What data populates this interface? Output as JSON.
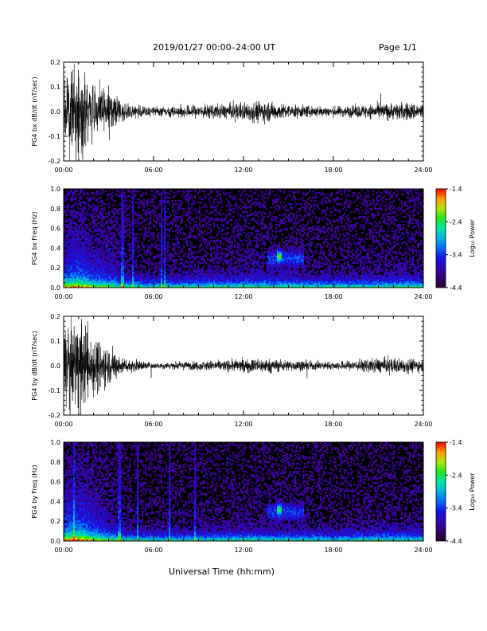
{
  "header": {
    "title": "2019/01/27  00:00–24:00 UT",
    "page": "Page 1/1",
    "xlabel": "Universal Time (hh:mm)"
  },
  "colorbar": {
    "label": "Log₁₀ Power",
    "ticks": [
      "-1.4",
      "-2.4",
      "-3.4",
      "-4.4"
    ],
    "range": [
      -4.4,
      -1.4
    ]
  },
  "chart_data": [
    {
      "type": "line",
      "ylabel": "PG4 bx dB/dt (nT/sec)",
      "x_ticks": [
        "00:00",
        "06:00",
        "12:00",
        "18:00",
        "24:00"
      ],
      "xlim": [
        0,
        24
      ],
      "ylim": [
        -0.2,
        0.2
      ],
      "y_ticks": [
        "0.2",
        "0.1",
        "0.0",
        "-0.1",
        "-0.2"
      ],
      "activity_envelope_hours": [
        [
          0,
          0.09
        ],
        [
          1,
          0.11
        ],
        [
          2,
          0.07
        ],
        [
          3,
          0.06
        ],
        [
          4,
          0.025
        ],
        [
          6,
          0.012
        ],
        [
          9,
          0.018
        ],
        [
          11,
          0.02
        ],
        [
          13,
          0.03
        ],
        [
          15,
          0.018
        ],
        [
          18,
          0.013
        ],
        [
          21,
          0.02
        ],
        [
          23,
          0.025
        ],
        [
          24,
          0.02
        ]
      ]
    },
    {
      "type": "heatmap",
      "ylabel": "PG4 bx Freq (Hz)",
      "x_ticks": [
        "00:00",
        "06:00",
        "12:00",
        "18:00",
        "24:00"
      ],
      "xlim": [
        0,
        24
      ],
      "ylim": [
        0,
        1.0
      ],
      "y_ticks": [
        "1.0",
        "0.8",
        "0.6",
        "0.4",
        "0.2",
        "0.0"
      ]
    },
    {
      "type": "line",
      "ylabel": "PG4 by dB/dt (nT/sec)",
      "x_ticks": [
        "00:00",
        "06:00",
        "12:00",
        "18:00",
        "24:00"
      ],
      "xlim": [
        0,
        24
      ],
      "ylim": [
        -0.2,
        0.2
      ],
      "y_ticks": [
        "0.2",
        "0.1",
        "0.0",
        "-0.1",
        "-0.2"
      ],
      "activity_envelope_hours": [
        [
          0,
          0.1
        ],
        [
          1,
          0.13
        ],
        [
          2,
          0.08
        ],
        [
          3,
          0.05
        ],
        [
          4,
          0.02
        ],
        [
          6,
          0.008
        ],
        [
          9,
          0.012
        ],
        [
          11,
          0.015
        ],
        [
          13,
          0.02
        ],
        [
          15,
          0.015
        ],
        [
          18,
          0.01
        ],
        [
          21,
          0.02
        ],
        [
          23,
          0.02
        ],
        [
          24,
          0.015
        ]
      ]
    },
    {
      "type": "heatmap",
      "ylabel": "PG4 by Freq (Hz)",
      "x_ticks": [
        "00:00",
        "06:00",
        "12:00",
        "18:00",
        "24:00"
      ],
      "xlim": [
        0,
        24
      ],
      "ylim": [
        0,
        1.0
      ],
      "y_ticks": [
        "1.0",
        "0.8",
        "0.6",
        "0.4",
        "0.2",
        "0.0"
      ]
    }
  ]
}
